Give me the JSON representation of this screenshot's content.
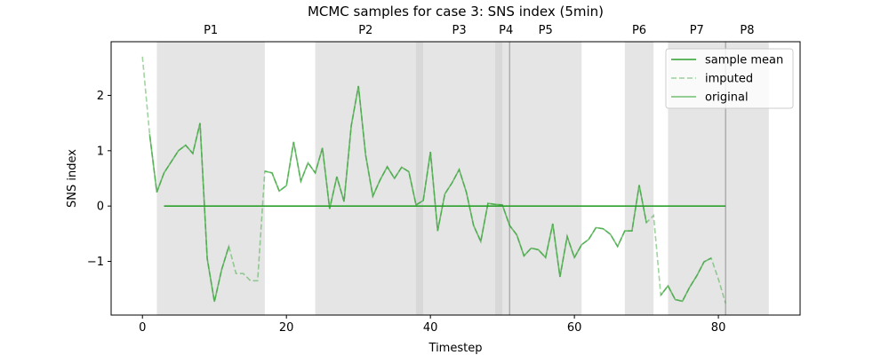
{
  "chart_data": {
    "type": "line",
    "title": "MCMC samples for case 3: SNS index (5min)",
    "xlabel": "Timestep",
    "ylabel": "SNS index",
    "xlim": [
      -4.35,
      91.35
    ],
    "ylim": [
      -1.97,
      2.97
    ],
    "xticks": [
      0,
      20,
      40,
      60,
      80
    ],
    "yticks": [
      -1,
      0,
      1,
      2
    ],
    "grid": false,
    "legend_position": "upper right",
    "colors": {
      "sample_mean": "#2ca02c",
      "series": "#2ca02c",
      "shade_light": "#d3d3d3",
      "shade_dark": "#a9a9a9"
    },
    "periods": [
      {
        "label": "P1",
        "start": 2,
        "end": 17
      },
      {
        "label": "P2",
        "start": 24,
        "end": 38
      },
      {
        "label": "P3",
        "start": 39,
        "end": 49
      },
      {
        "label": "P4",
        "start": 50,
        "end": 51
      },
      {
        "label": "P5",
        "start": 51,
        "end": 61
      },
      {
        "label": "P6",
        "start": 67,
        "end": 71
      },
      {
        "label": "P7",
        "start": 73,
        "end": 81
      },
      {
        "label": "P8",
        "start": 81,
        "end": 87
      }
    ],
    "overlaps": [
      {
        "start": 38,
        "end": 39
      },
      {
        "start": 49,
        "end": 50
      }
    ],
    "boundary_lines": [
      51,
      81
    ],
    "series": [
      {
        "name": "sample mean",
        "style": "solid",
        "x": [
          3,
          81
        ],
        "y": [
          0,
          0
        ]
      },
      {
        "name": "imputed",
        "style": "dashed",
        "x": [
          0,
          1,
          2,
          3,
          4,
          5,
          6,
          7,
          8,
          9,
          10,
          11,
          12,
          13,
          14,
          15,
          16,
          17,
          18,
          19,
          20,
          21,
          22,
          23,
          24,
          25,
          26,
          27,
          28,
          29,
          30,
          31,
          32,
          33,
          34,
          35,
          36,
          37,
          38,
          39,
          40,
          41,
          42,
          43,
          44,
          45,
          46,
          47,
          48,
          49,
          50,
          51,
          52,
          53,
          54,
          55,
          56,
          57,
          58,
          59,
          60,
          61,
          62,
          63,
          64,
          65,
          66,
          67,
          68,
          69,
          70,
          71,
          72,
          73,
          74,
          75,
          76,
          77,
          78,
          79,
          80,
          81
        ],
        "y": [
          2.7,
          1.3,
          0.25,
          0.6,
          0.8,
          1.0,
          1.1,
          0.95,
          1.5,
          -0.95,
          -1.73,
          -1.15,
          -0.73,
          -1.22,
          -1.22,
          -1.35,
          -1.35,
          0.63,
          0.6,
          0.27,
          0.37,
          1.16,
          0.45,
          0.78,
          0.6,
          1.05,
          -0.05,
          0.53,
          0.08,
          1.45,
          2.17,
          0.92,
          0.18,
          0.47,
          0.71,
          0.5,
          0.7,
          0.62,
          0.02,
          0.1,
          0.98,
          -0.45,
          0.22,
          0.42,
          0.66,
          0.25,
          -0.35,
          -0.64,
          0.05,
          0.03,
          0.02,
          -0.35,
          -0.52,
          -0.9,
          -0.76,
          -0.79,
          -0.93,
          -0.32,
          -1.28,
          -0.55,
          -0.93,
          -0.7,
          -0.6,
          -0.39,
          -0.41,
          -0.51,
          -0.73,
          -0.45,
          -0.45,
          0.38,
          -0.3,
          -0.17,
          -1.61,
          -1.44,
          -1.69,
          -1.72,
          -1.47,
          -1.26,
          -1.01,
          -0.94,
          -1.32,
          -1.76
        ]
      },
      {
        "name": "original",
        "style": "solid",
        "x": [
          1,
          2,
          3,
          4,
          5,
          6,
          7,
          8,
          9,
          10,
          11,
          12,
          null,
          17,
          18,
          19,
          20,
          21,
          22,
          23,
          24,
          25,
          26,
          27,
          28,
          29,
          30,
          31,
          32,
          33,
          34,
          35,
          36,
          37,
          38,
          39,
          40,
          41,
          42,
          43,
          44,
          45,
          46,
          47,
          48,
          49,
          50,
          51,
          52,
          53,
          54,
          55,
          56,
          57,
          58,
          59,
          60,
          61,
          62,
          63,
          64,
          65,
          66,
          67,
          68,
          69,
          70,
          null,
          72,
          73,
          74,
          75,
          76,
          77,
          78,
          79
        ],
        "y": [
          1.3,
          0.25,
          0.6,
          0.8,
          1.0,
          1.1,
          0.95,
          1.5,
          -0.95,
          -1.73,
          -1.15,
          -0.73,
          null,
          0.63,
          0.6,
          0.27,
          0.37,
          1.16,
          0.45,
          0.78,
          0.6,
          1.05,
          -0.05,
          0.53,
          0.08,
          1.45,
          2.17,
          0.92,
          0.18,
          0.47,
          0.71,
          0.5,
          0.7,
          0.62,
          0.02,
          0.1,
          0.98,
          -0.45,
          0.22,
          0.42,
          0.66,
          0.25,
          -0.35,
          -0.64,
          0.05,
          0.03,
          0.02,
          -0.35,
          -0.52,
          -0.9,
          -0.76,
          -0.79,
          -0.93,
          -0.32,
          -1.28,
          -0.55,
          -0.93,
          -0.7,
          -0.6,
          -0.39,
          -0.41,
          -0.51,
          -0.73,
          -0.45,
          -0.45,
          0.38,
          -0.3,
          null,
          -1.61,
          -1.44,
          -1.69,
          -1.72,
          -1.47,
          -1.26,
          -1.01,
          -0.94
        ]
      }
    ]
  }
}
